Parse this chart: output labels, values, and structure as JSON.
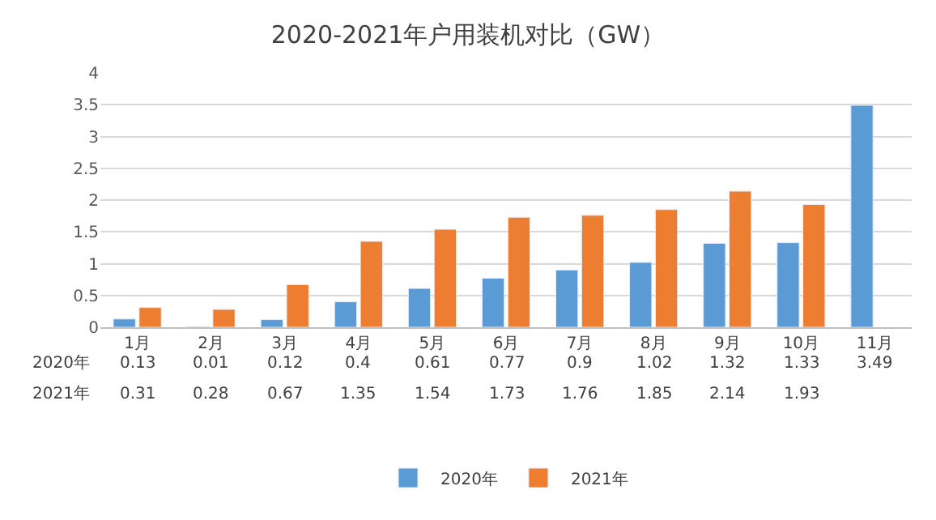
{
  "chart_data": {
    "type": "bar",
    "title": "2020-2021年户用装机对比（GW）",
    "categories": [
      "1月",
      "2月",
      "3月",
      "4月",
      "5月",
      "6月",
      "7月",
      "8月",
      "9月",
      "10月",
      "11月"
    ],
    "series": [
      {
        "name": "2020年",
        "color": "#5b9bd5",
        "values": [
          0.13,
          0.01,
          0.12,
          0.4,
          0.61,
          0.77,
          0.9,
          1.02,
          1.32,
          1.33,
          3.49
        ]
      },
      {
        "name": "2021年",
        "color": "#ed7d31",
        "values": [
          0.31,
          0.28,
          0.67,
          1.35,
          1.54,
          1.73,
          1.76,
          1.85,
          2.14,
          1.93,
          null
        ]
      }
    ],
    "ylim": [
      0,
      4
    ],
    "yticks": [
      0,
      0.5,
      1,
      1.5,
      2,
      2.5,
      3,
      3.5,
      4
    ],
    "grid": "y",
    "legend": "bottom",
    "data_labels": true
  }
}
